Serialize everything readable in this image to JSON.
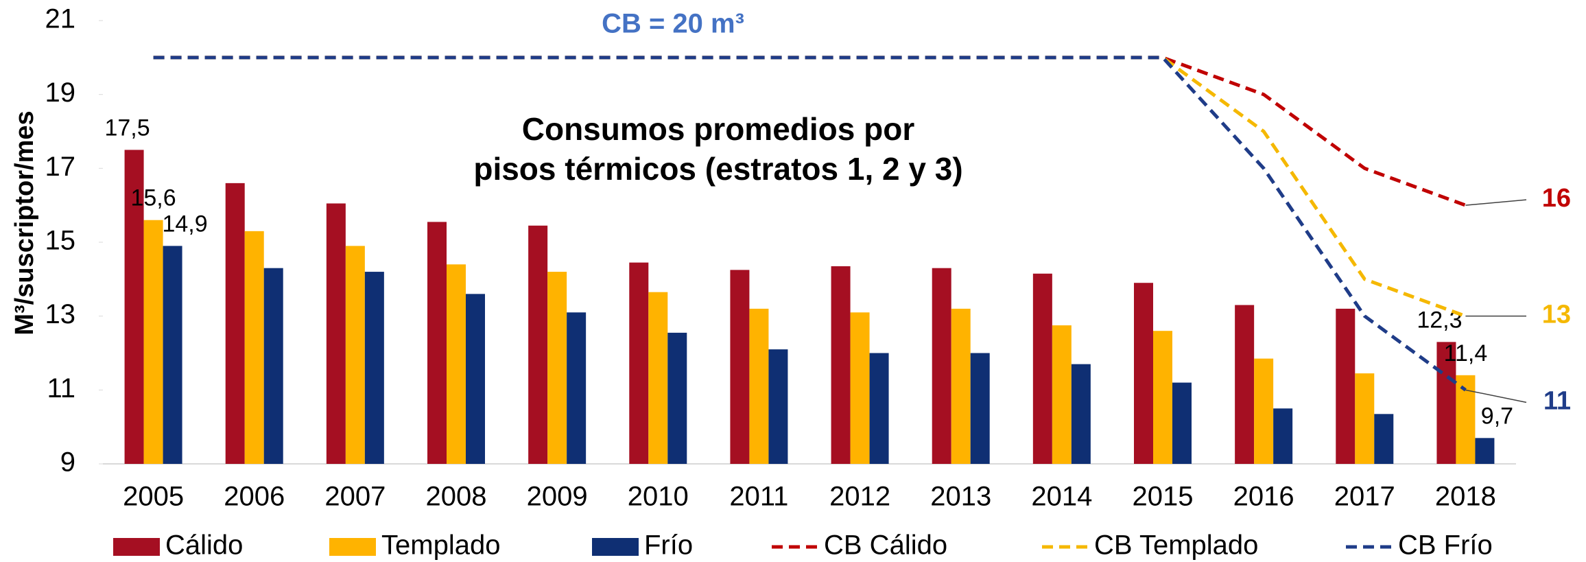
{
  "chart_data": {
    "type": "bar",
    "title": [
      "Consumos promedios por",
      "pisos térmicos (estratos 1, 2 y 3)"
    ],
    "annotation": "CB = 20 m³",
    "y_label": "M³/suscriptor/mes",
    "categories": [
      "2005",
      "2006",
      "2007",
      "2008",
      "2009",
      "2010",
      "2011",
      "2012",
      "2013",
      "2014",
      "2015",
      "2016",
      "2017",
      "2018"
    ],
    "ylim": [
      9,
      21
    ],
    "yticks": [
      9,
      11,
      13,
      15,
      17,
      19,
      21
    ],
    "series": [
      {
        "name": "Cálido",
        "type": "bar",
        "color": "#a50f22",
        "values": [
          17.5,
          16.6,
          16.05,
          15.55,
          15.45,
          14.45,
          14.25,
          14.35,
          14.3,
          14.15,
          13.9,
          13.3,
          13.2,
          12.3
        ],
        "value_labels": [
          "17,5",
          null,
          null,
          null,
          null,
          null,
          null,
          null,
          null,
          null,
          null,
          null,
          null,
          "12,3"
        ]
      },
      {
        "name": "Templado",
        "type": "bar",
        "color": "#ffb300",
        "values": [
          15.6,
          15.3,
          14.9,
          14.4,
          14.2,
          13.65,
          13.2,
          13.1,
          13.2,
          12.75,
          12.6,
          11.85,
          11.45,
          11.4
        ],
        "value_labels": [
          "15,6",
          null,
          null,
          null,
          null,
          null,
          null,
          null,
          null,
          null,
          null,
          null,
          null,
          "11,4"
        ]
      },
      {
        "name": "Frío",
        "type": "bar",
        "color": "#0f2f73",
        "values": [
          14.9,
          14.3,
          14.2,
          13.6,
          13.1,
          12.55,
          12.1,
          12.0,
          12.0,
          11.7,
          11.2,
          10.5,
          10.35,
          9.7
        ],
        "value_labels": [
          "14,9",
          null,
          null,
          null,
          null,
          null,
          null,
          null,
          null,
          null,
          null,
          null,
          null,
          "9,7"
        ]
      },
      {
        "name": "CB Cálido",
        "type": "line",
        "color": "#c00000",
        "values": [
          20,
          20,
          20,
          20,
          20,
          20,
          20,
          20,
          20,
          20,
          20,
          19,
          17,
          16
        ]
      },
      {
        "name": "CB Templado",
        "type": "line",
        "color": "#f5b800",
        "values": [
          20,
          20,
          20,
          20,
          20,
          20,
          20,
          20,
          20,
          20,
          20,
          18,
          14,
          13
        ]
      },
      {
        "name": "CB Frío",
        "type": "line",
        "color": "#1f3c88",
        "values": [
          20,
          20,
          20,
          20,
          20,
          20,
          20,
          20,
          20,
          20,
          20,
          17,
          13,
          11
        ]
      }
    ]
  }
}
